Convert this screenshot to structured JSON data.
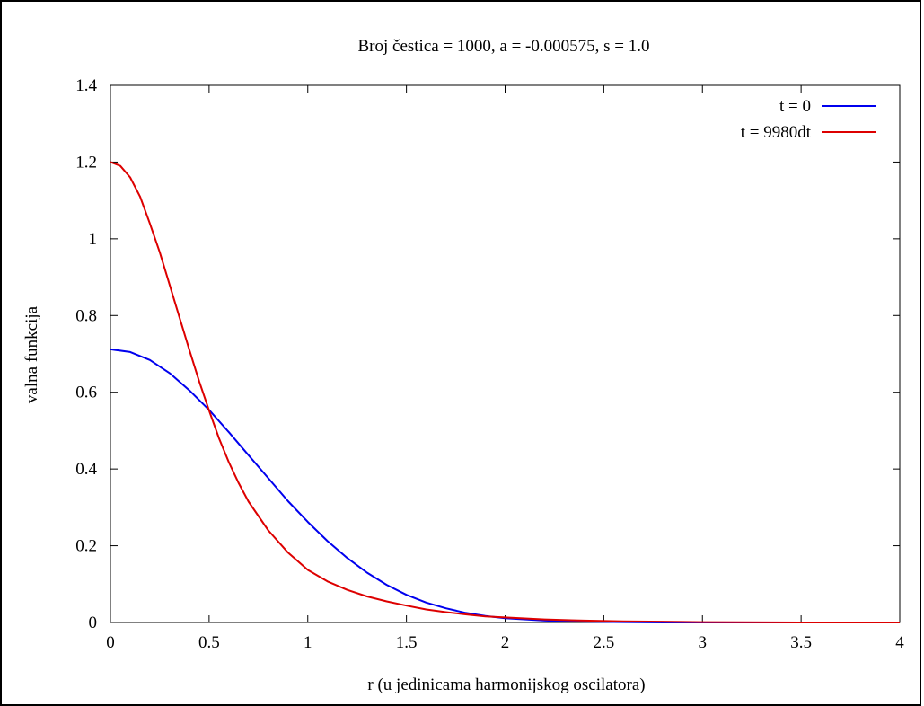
{
  "chart_data": {
    "type": "line",
    "title": "Broj čestica = 1000, a = -0.000575, s = 1.0",
    "xlabel": "r (u jedinicama harmonijskog oscilatora)",
    "ylabel": "valna funkcija",
    "xlim": [
      0,
      4
    ],
    "ylim": [
      0,
      1.4
    ],
    "xticks": [
      "0",
      "0.5",
      "1",
      "1.5",
      "2",
      "2.5",
      "3",
      "3.5",
      "4"
    ],
    "yticks": [
      "0",
      "0.2",
      "0.4",
      "0.6",
      "0.8",
      "1",
      "1.2",
      "1.4"
    ],
    "grid": false,
    "legend_position": "top-right",
    "series": [
      {
        "name": "t = 0",
        "color": "#0000ee",
        "x": [
          0,
          0.1,
          0.2,
          0.3,
          0.4,
          0.5,
          0.6,
          0.7,
          0.8,
          0.9,
          1.0,
          1.1,
          1.2,
          1.3,
          1.4,
          1.5,
          1.6,
          1.7,
          1.8,
          1.9,
          2.0,
          2.2,
          2.4,
          2.6,
          2.8,
          3.0,
          3.5,
          4.0
        ],
        "y": [
          0.712,
          0.705,
          0.684,
          0.65,
          0.605,
          0.554,
          0.496,
          0.436,
          0.376,
          0.316,
          0.262,
          0.212,
          0.168,
          0.13,
          0.098,
          0.072,
          0.052,
          0.037,
          0.025,
          0.017,
          0.011,
          0.005,
          0.002,
          0.001,
          0.0,
          0.0,
          0.0,
          0.0
        ]
      },
      {
        "name": "t = 9980dt",
        "color": "#dd0000",
        "x": [
          0,
          0.05,
          0.1,
          0.15,
          0.2,
          0.25,
          0.3,
          0.35,
          0.4,
          0.45,
          0.5,
          0.55,
          0.6,
          0.65,
          0.7,
          0.8,
          0.9,
          1.0,
          1.1,
          1.2,
          1.3,
          1.4,
          1.5,
          1.6,
          1.7,
          1.8,
          1.9,
          2.0,
          2.2,
          2.4,
          2.6,
          2.8,
          3.0,
          3.5,
          4.0
        ],
        "y": [
          1.2,
          1.19,
          1.16,
          1.11,
          1.04,
          0.965,
          0.88,
          0.795,
          0.71,
          0.628,
          0.552,
          0.48,
          0.418,
          0.363,
          0.315,
          0.24,
          0.182,
          0.137,
          0.107,
          0.085,
          0.068,
          0.055,
          0.044,
          0.034,
          0.027,
          0.021,
          0.016,
          0.013,
          0.008,
          0.005,
          0.003,
          0.002,
          0.001,
          0.0,
          0.0
        ]
      }
    ]
  }
}
